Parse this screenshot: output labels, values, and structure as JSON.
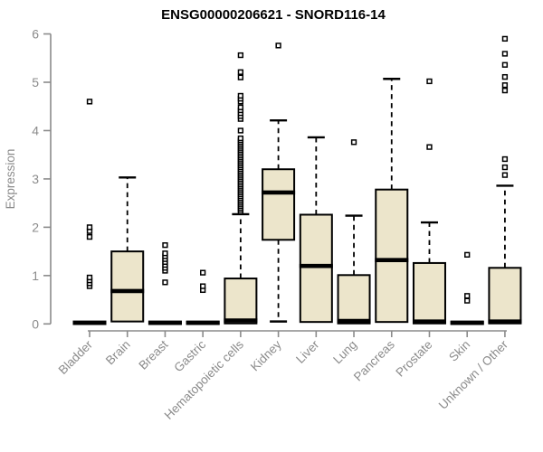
{
  "chart_data": {
    "type": "boxplot",
    "title": "ENSG00000206621 - SNORD116-14",
    "xlabel": "",
    "ylabel": "Expression",
    "ylim": [
      0,
      6
    ],
    "yticks": [
      0,
      1,
      2,
      3,
      4,
      5,
      6
    ],
    "grid": false,
    "legend": "none",
    "colors": {
      "box_fill": "#ece5cb",
      "box_stroke": "#000000",
      "outlier_fill": "#ffffff",
      "axis": "#8b8b8b",
      "label": "#8b8b8b",
      "title": "#000000",
      "background": "#ffffff"
    },
    "categories": [
      "Bladder",
      "Brain",
      "Breast",
      "Gastric",
      "Hematopoietic cells",
      "Kidney",
      "Liver",
      "Lung",
      "Pancreas",
      "Prostate",
      "Skin",
      "Unknown / Other"
    ],
    "series": [
      {
        "label": "Bladder",
        "whisker_low": 0,
        "q1": 0,
        "median": 0.02,
        "q3": 0.05,
        "whisker_high": 0.05,
        "outliers": [
          0.78,
          0.84,
          0.9,
          0.96,
          1.8,
          1.92,
          2.0,
          4.6
        ]
      },
      {
        "label": "Brain",
        "whisker_low": 0,
        "q1": 0.05,
        "median": 0.68,
        "q3": 1.5,
        "whisker_high": 3.03,
        "outliers": []
      },
      {
        "label": "Breast",
        "whisker_low": 0,
        "q1": 0,
        "median": 0.02,
        "q3": 0.05,
        "whisker_high": 0.05,
        "outliers": [
          0.86,
          1.1,
          1.16,
          1.22,
          1.28,
          1.34,
          1.4,
          1.46,
          1.63
        ]
      },
      {
        "label": "Gastric",
        "whisker_low": 0,
        "q1": 0,
        "median": 0.02,
        "q3": 0.05,
        "whisker_high": 0.05,
        "outliers": [
          0.7,
          0.78,
          1.06
        ]
      },
      {
        "label": "Hematopoietic cells",
        "whisker_low": 0,
        "q1": 0.01,
        "median": 0.07,
        "q3": 0.94,
        "whisker_high": 2.27,
        "outliers": [
          2.32,
          2.36,
          2.4,
          2.44,
          2.48,
          2.52,
          2.56,
          2.6,
          2.64,
          2.68,
          2.72,
          2.76,
          2.8,
          2.84,
          2.88,
          2.92,
          2.96,
          3.0,
          3.04,
          3.08,
          3.12,
          3.16,
          3.2,
          3.24,
          3.28,
          3.32,
          3.36,
          3.4,
          3.44,
          3.48,
          3.52,
          3.56,
          3.6,
          3.64,
          3.68,
          3.72,
          3.76,
          3.8,
          3.84,
          4.0,
          4.24,
          4.3,
          4.36,
          4.42,
          4.48,
          4.6,
          4.66,
          4.72,
          5.1,
          5.21,
          5.56
        ]
      },
      {
        "label": "Kidney",
        "whisker_low": 0.05,
        "q1": 1.74,
        "median": 2.72,
        "q3": 3.2,
        "whisker_high": 4.21,
        "outliers": [
          5.76
        ]
      },
      {
        "label": "Liver",
        "whisker_low": 0,
        "q1": 0.04,
        "median": 1.2,
        "q3": 2.26,
        "whisker_high": 3.86,
        "outliers": []
      },
      {
        "label": "Lung",
        "whisker_low": 0,
        "q1": 0.01,
        "median": 0.06,
        "q3": 1.01,
        "whisker_high": 2.24,
        "outliers": [
          3.76
        ]
      },
      {
        "label": "Pancreas",
        "whisker_low": 0,
        "q1": 0.04,
        "median": 1.32,
        "q3": 2.78,
        "whisker_high": 5.07,
        "outliers": []
      },
      {
        "label": "Prostate",
        "whisker_low": 0,
        "q1": 0.01,
        "median": 0.05,
        "q3": 1.26,
        "whisker_high": 2.1,
        "outliers": [
          3.66,
          5.02
        ]
      },
      {
        "label": "Skin",
        "whisker_low": 0,
        "q1": 0,
        "median": 0.02,
        "q3": 0.05,
        "whisker_high": 0.05,
        "outliers": [
          0.48,
          0.58,
          1.43
        ]
      },
      {
        "label": "Unknown / Other",
        "whisker_low": 0,
        "q1": 0.01,
        "median": 0.05,
        "q3": 1.16,
        "whisker_high": 2.86,
        "outliers": [
          3.08,
          3.24,
          3.41,
          4.83,
          4.94,
          5.11,
          5.36,
          5.59,
          5.9
        ]
      }
    ]
  }
}
